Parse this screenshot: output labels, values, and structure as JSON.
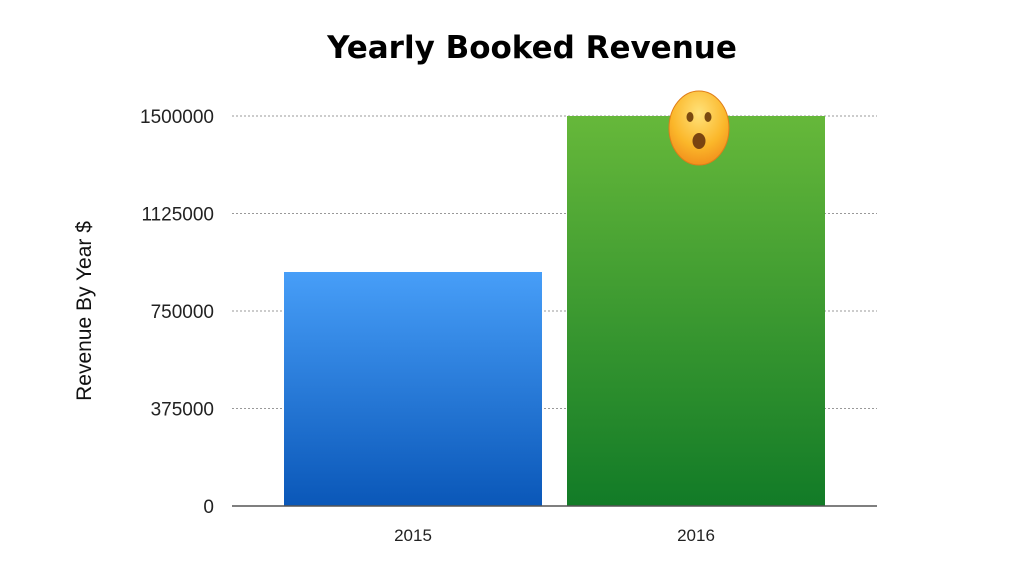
{
  "chart_data": {
    "type": "bar",
    "title": "Yearly Booked Revenue",
    "xlabel": "",
    "ylabel": "Revenue By Year $",
    "categories": [
      "2015",
      "2016"
    ],
    "values": [
      900000,
      1500000
    ],
    "ylim": [
      0,
      1500000
    ],
    "yticks": [
      0,
      375000,
      750000,
      1125000,
      1500000
    ],
    "ytick_labels": [
      "0",
      "375000",
      "750000",
      "1125000",
      "1500000"
    ],
    "grid": "horizontal dotted",
    "legend": "none",
    "colors": {
      "2015": [
        "#479ef8",
        "#0a57b8"
      ],
      "2016": [
        "#66b83a",
        "#127b27"
      ]
    },
    "annotations": [
      {
        "category": "2016",
        "icon": "astonished-face-emoji"
      }
    ]
  }
}
